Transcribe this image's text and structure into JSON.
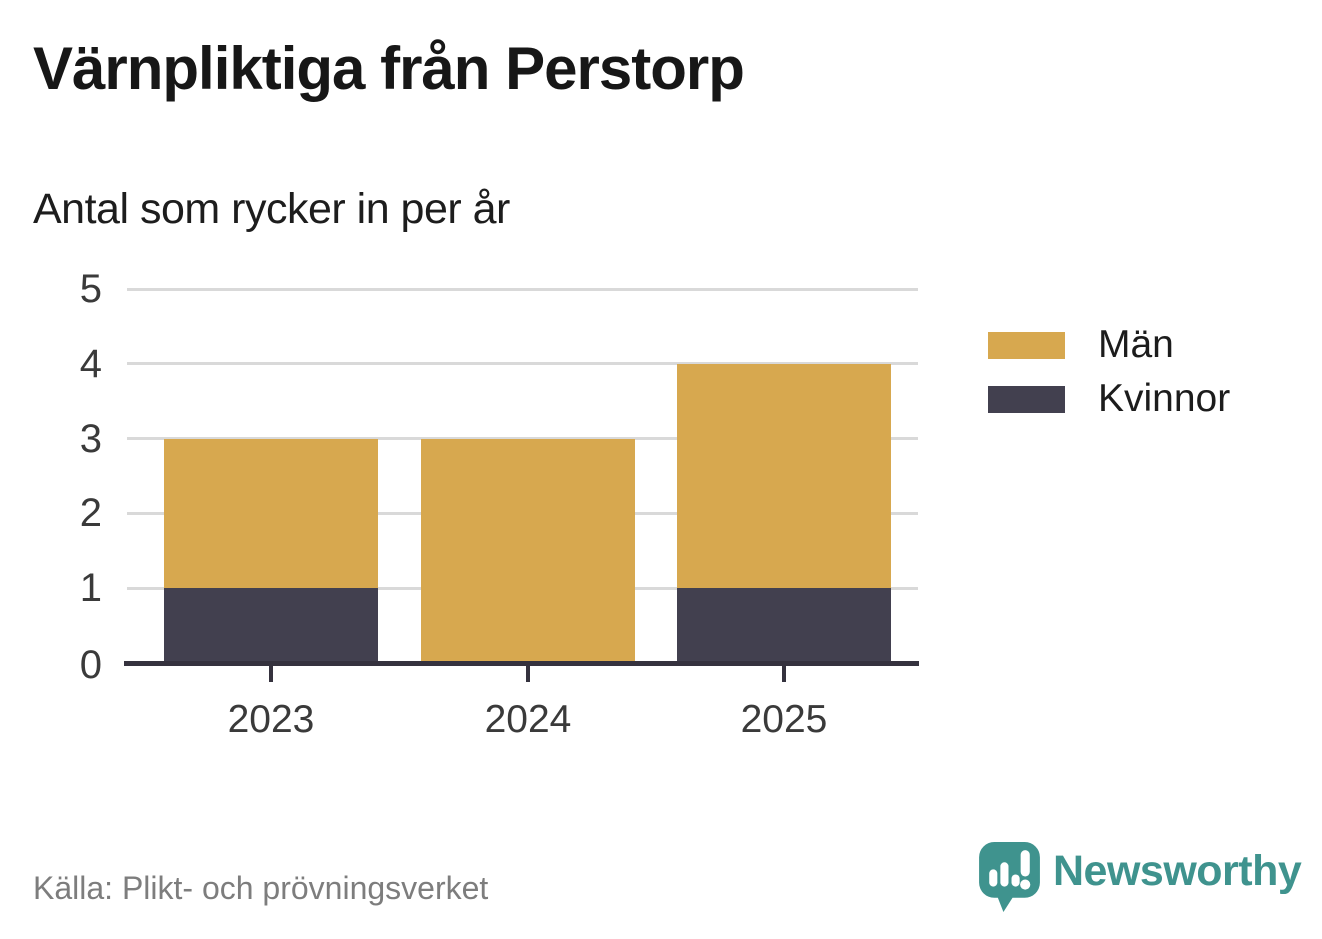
{
  "title": "Värnpliktiga från Perstorp",
  "subtitle": "Antal som rycker in per år",
  "source": "Källa: Plikt- och prövningsverket",
  "brand": {
    "name": "Newsworthy",
    "color": "#3f938e",
    "icon": "speech-bubble-bar-chart-icon"
  },
  "colors": {
    "men": "#d7a84f",
    "women": "#42404f",
    "grid": "#d9d9d9",
    "axis": "#35323e",
    "tick_label": "#3a3a3a",
    "source_text": "#7d7d7d",
    "background": "#ffffff"
  },
  "legend": {
    "items": [
      {
        "label": "Män",
        "color": "#d7a84f"
      },
      {
        "label": "Kvinnor",
        "color": "#42404f"
      }
    ]
  },
  "chart_data": {
    "type": "bar",
    "stacked": true,
    "categories": [
      "2023",
      "2024",
      "2025"
    ],
    "series": [
      {
        "name": "Män",
        "color": "#d7a84f",
        "values": [
          2,
          3,
          3
        ]
      },
      {
        "name": "Kvinnor",
        "color": "#42404f",
        "values": [
          1,
          0,
          1
        ]
      }
    ],
    "totals": [
      3,
      3,
      4
    ],
    "title": "Värnpliktiga från Perstorp",
    "subtitle": "Antal som rycker in per år",
    "xlabel": "",
    "ylabel": "",
    "ylim": [
      0,
      5
    ],
    "yticks": [
      0,
      1,
      2,
      3,
      4,
      5
    ],
    "grid": true,
    "legend_position": "right"
  }
}
